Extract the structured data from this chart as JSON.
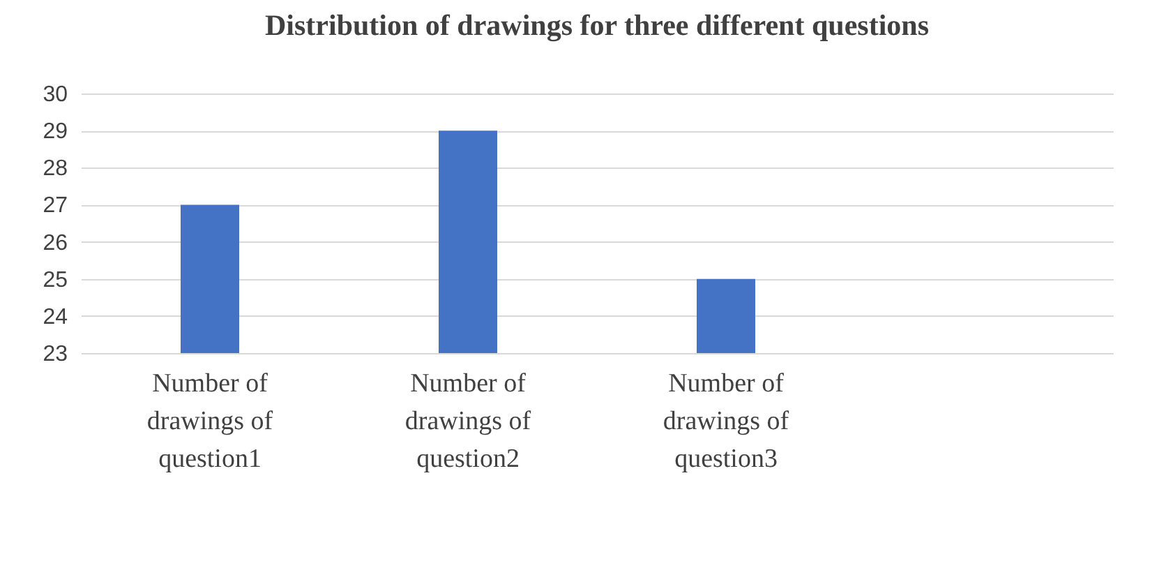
{
  "chart_data": {
    "type": "bar",
    "title": "Distribution of drawings for three different questions",
    "categories": [
      "Number of drawings of question1",
      "Number of drawings of question2",
      "Number of drawings of question3",
      null
    ],
    "values": [
      27,
      29,
      25,
      null
    ],
    "color": "#4472c4",
    "ylim": [
      23,
      30
    ],
    "yticks": [
      23,
      24,
      25,
      26,
      27,
      28,
      29,
      30
    ],
    "grid": "y"
  }
}
